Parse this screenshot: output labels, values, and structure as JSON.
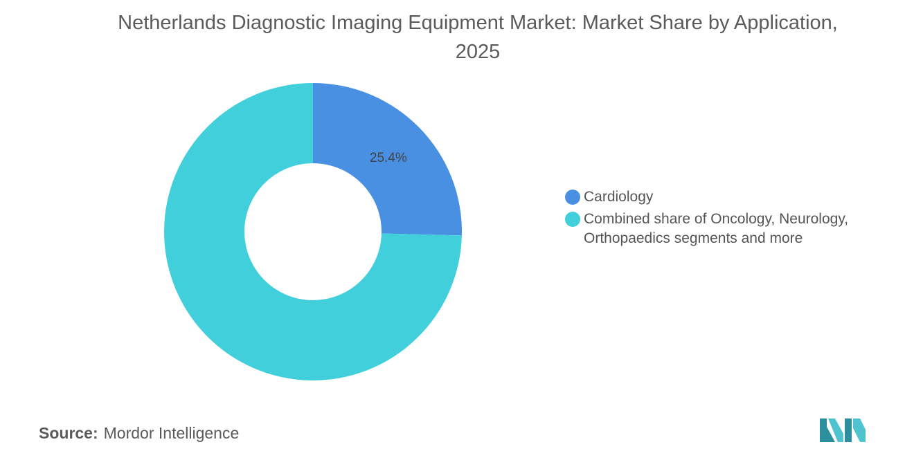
{
  "title": "Netherlands Diagnostic Imaging Equipment Market: Market Share by Application, 2025",
  "source": {
    "label": "Source:",
    "value": "Mordor Intelligence"
  },
  "colors": {
    "cardiology": "#4a90e2",
    "combined": "#41d0db"
  },
  "chart_data": {
    "type": "pie",
    "subtype": "donut",
    "title": "Netherlands Diagnostic Imaging Equipment Market: Market Share by Application, 2025",
    "legend_position": "right",
    "slices": [
      {
        "label": "Cardiology",
        "value": 25.4,
        "display": "25.4%",
        "color": "#4a90e2"
      },
      {
        "label": "Combined share of Oncology, Neurology, Orthopaedics segments and more",
        "value": 74.6,
        "display": "",
        "color": "#41d0db"
      }
    ]
  },
  "logo": {
    "icon": "mordor-intelligence-logo"
  }
}
